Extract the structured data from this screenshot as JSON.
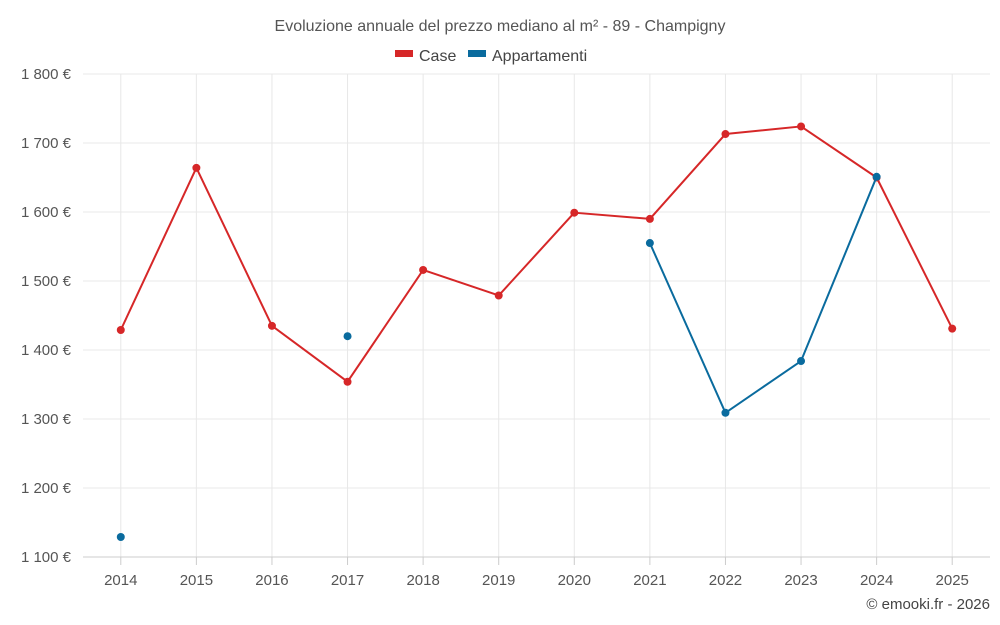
{
  "chart_data": {
    "type": "line",
    "title": "Evoluzione annuale del prezzo mediano al m² - 89 - Champigny",
    "categories": [
      "2014",
      "2015",
      "2016",
      "2017",
      "2018",
      "2019",
      "2020",
      "2021",
      "2022",
      "2023",
      "2024",
      "2025"
    ],
    "series": [
      {
        "name": "Case",
        "color": "#d62728",
        "values": [
          1429,
          1664,
          1435,
          1354,
          1516,
          1479,
          1599,
          1590,
          1713,
          1724,
          1650,
          1431
        ]
      },
      {
        "name": "Appartamenti",
        "color": "#0a6b9e",
        "values": [
          1129,
          null,
          null,
          1420,
          null,
          null,
          null,
          1555,
          1309,
          1384,
          1651,
          null
        ]
      }
    ],
    "ylim": [
      1100,
      1800
    ],
    "yticks": [
      1100,
      1200,
      1300,
      1400,
      1500,
      1600,
      1700,
      1800
    ],
    "ytick_labels": [
      "1 100 €",
      "1 200 €",
      "1 300 €",
      "1 400 €",
      "1 500 €",
      "1 600 €",
      "1 700 €",
      "1 800 €"
    ],
    "grid": true,
    "legend_position": "top-center"
  },
  "credit": "© emooki.fr - 2026"
}
